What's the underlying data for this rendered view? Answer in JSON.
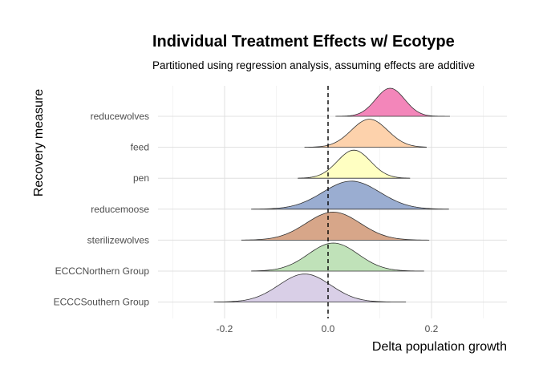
{
  "chart_data": {
    "type": "ridgeline",
    "title": "Individual Treatment Effects w/ Ecotype",
    "subtitle": "Partitioned using regression analysis, assuming effects are additive",
    "xlabel": "Delta population growth",
    "ylabel": "Recovery measure",
    "xlim": [
      -0.3,
      0.35
    ],
    "xticks": [
      -0.2,
      0.0,
      0.2
    ],
    "xtick_labels": [
      "-0.2",
      "0.0",
      "0.2"
    ],
    "grid": true,
    "reference_line": {
      "x": 0.0,
      "style": "dashed"
    },
    "series": [
      {
        "name": "reducewolves",
        "color": "#f27fb6",
        "mean": 0.12,
        "sd": 0.028,
        "min": 0.015,
        "max": 0.235
      },
      {
        "name": "feed",
        "color": "#fdd0a8",
        "mean": 0.08,
        "sd": 0.035,
        "min": -0.045,
        "max": 0.19
      },
      {
        "name": "pen",
        "color": "#ffffbf",
        "mean": 0.05,
        "sd": 0.032,
        "min": -0.058,
        "max": 0.158
      },
      {
        "name": "reducemoose",
        "color": "#95a9cf",
        "mean": 0.045,
        "sd": 0.055,
        "min": -0.148,
        "max": 0.233
      },
      {
        "name": "sterilizewolves",
        "color": "#d5a183",
        "mean": 0.01,
        "sd": 0.052,
        "min": -0.167,
        "max": 0.195
      },
      {
        "name": "ECCCNorthern Group",
        "color": "#bde0b5",
        "mean": 0.01,
        "sd": 0.048,
        "min": -0.148,
        "max": 0.185
      },
      {
        "name": "ECCCSouthern Group",
        "color": "#d7cce6",
        "mean": -0.045,
        "sd": 0.05,
        "min": -0.22,
        "max": 0.15
      }
    ]
  }
}
